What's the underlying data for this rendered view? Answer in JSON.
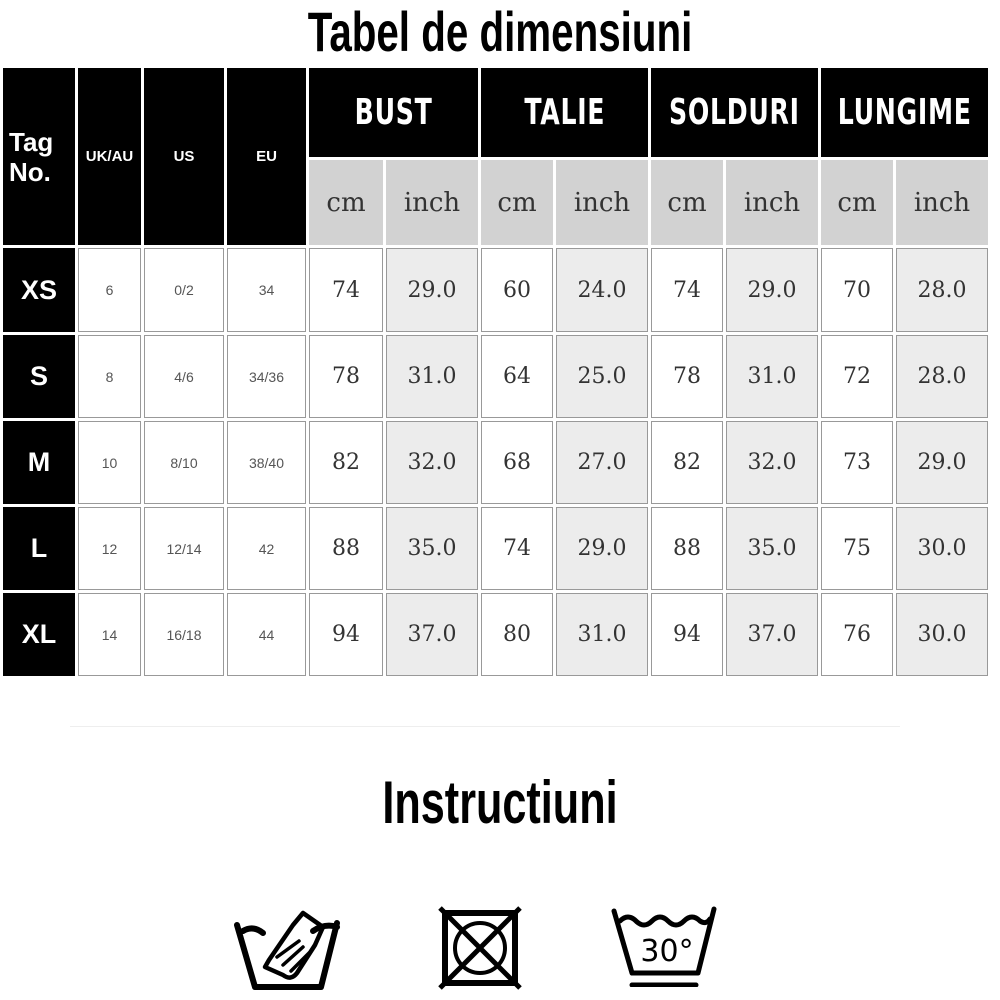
{
  "title": "Tabel de dimensiuni",
  "table": {
    "tag_header": "Tag No.",
    "system_headers": [
      "UK/AU",
      "US",
      "EU"
    ],
    "groups": [
      "BUST",
      "TALIE",
      "SOLDURI",
      "LUNGIME"
    ],
    "units": [
      "cm",
      "inch",
      "cm",
      "inch",
      "cm",
      "inch",
      "cm",
      "inch"
    ],
    "rows": [
      {
        "tag": "XS",
        "uk": "6",
        "us": "0/2",
        "eu": "34",
        "values": [
          "74",
          "29.0",
          "60",
          "24.0",
          "74",
          "29.0",
          "70",
          "28.0"
        ]
      },
      {
        "tag": "S",
        "uk": "8",
        "us": "4/6",
        "eu": "34/36",
        "values": [
          "78",
          "31.0",
          "64",
          "25.0",
          "78",
          "31.0",
          "72",
          "28.0"
        ]
      },
      {
        "tag": "M",
        "uk": "10",
        "us": "8/10",
        "eu": "38/40",
        "values": [
          "82",
          "32.0",
          "68",
          "27.0",
          "82",
          "32.0",
          "73",
          "29.0"
        ]
      },
      {
        "tag": "L",
        "uk": "12",
        "us": "12/14",
        "eu": "42",
        "values": [
          "88",
          "35.0",
          "74",
          "29.0",
          "88",
          "35.0",
          "75",
          "30.0"
        ]
      },
      {
        "tag": "XL",
        "uk": "14",
        "us": "16/18",
        "eu": "44",
        "values": [
          "94",
          "37.0",
          "80",
          "31.0",
          "94",
          "37.0",
          "76",
          "30.0"
        ]
      }
    ]
  },
  "instructions": {
    "title": "Instructiuni",
    "icons": [
      "hand-wash-icon",
      "do-not-tumble-dry-icon",
      "wash-30-gentle-icon"
    ],
    "wash_temp": "30°"
  }
}
